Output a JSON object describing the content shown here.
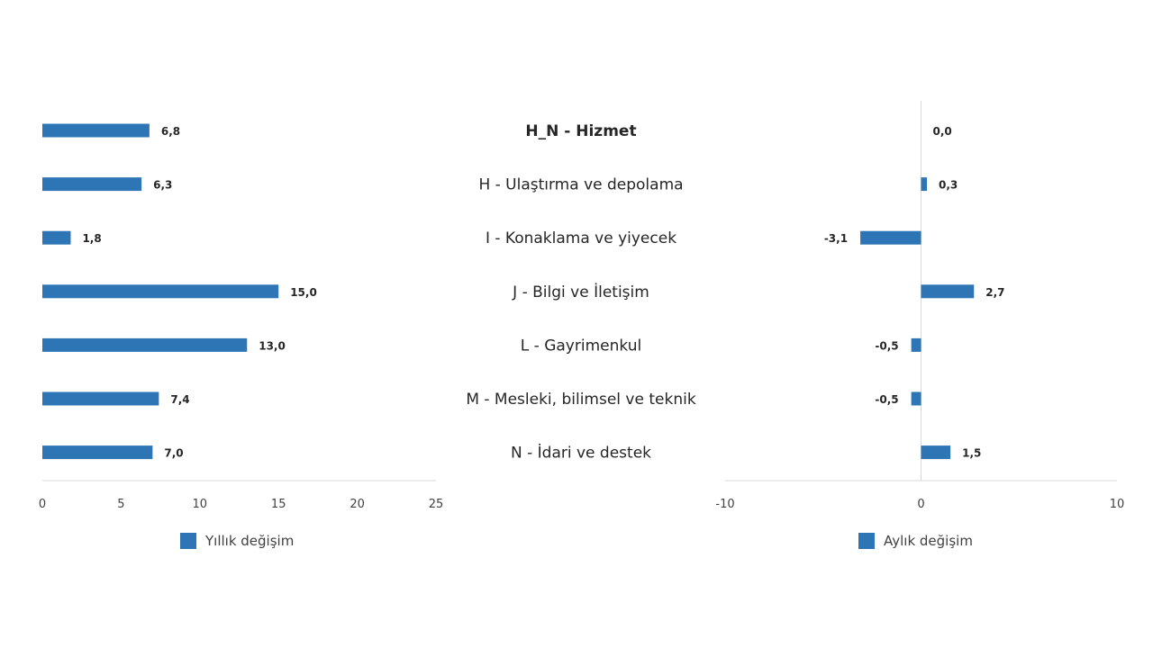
{
  "chart_data": [
    {
      "type": "bar",
      "orientation": "horizontal",
      "categories": [
        "H_N - Hizmet",
        "H - Ulaştırma ve depolama",
        "I - Konaklama ve yiyecek",
        "J - Bilgi ve İletişim",
        "L - Gayrimenkul",
        "M - Mesleki, bilimsel ve teknik",
        "N - İdari ve destek"
      ],
      "series": [
        {
          "name": "Yıllık değişim",
          "values": [
            6.8,
            6.3,
            1.8,
            15.0,
            13.0,
            7.4,
            7.0
          ],
          "labels": [
            "6,8",
            "6,3",
            "1,8",
            "15,0",
            "13,0",
            "7,4",
            "7,0"
          ]
        }
      ],
      "xlim": [
        0,
        25
      ],
      "ticks": [
        "0",
        "5",
        "10",
        "15",
        "20",
        "25"
      ],
      "tick_values": [
        0,
        5,
        10,
        15,
        20,
        25
      ],
      "legend_position": "bottom",
      "color": "#2e75b6"
    },
    {
      "type": "bar",
      "orientation": "horizontal",
      "categories": [
        "H_N - Hizmet",
        "H - Ulaştırma ve depolama",
        "I - Konaklama ve yiyecek",
        "J - Bilgi ve İletişim",
        "L - Gayrimenkul",
        "M - Mesleki, bilimsel ve teknik",
        "N - İdari ve destek"
      ],
      "series": [
        {
          "name": "Aylık değişim",
          "values": [
            0.0,
            0.3,
            -3.1,
            2.7,
            -0.5,
            -0.5,
            1.5
          ],
          "labels": [
            "0,0",
            "0,3",
            "-3,1",
            "2,7",
            "-0,5",
            "-0,5",
            "1,5"
          ]
        }
      ],
      "xlim": [
        -10,
        10
      ],
      "ticks": [
        "-10",
        "0",
        "10"
      ],
      "tick_values": [
        -10,
        0,
        10
      ],
      "legend_position": "bottom",
      "color": "#2e75b6"
    }
  ],
  "bold_categories": [
    "H_N - Hizmet"
  ]
}
